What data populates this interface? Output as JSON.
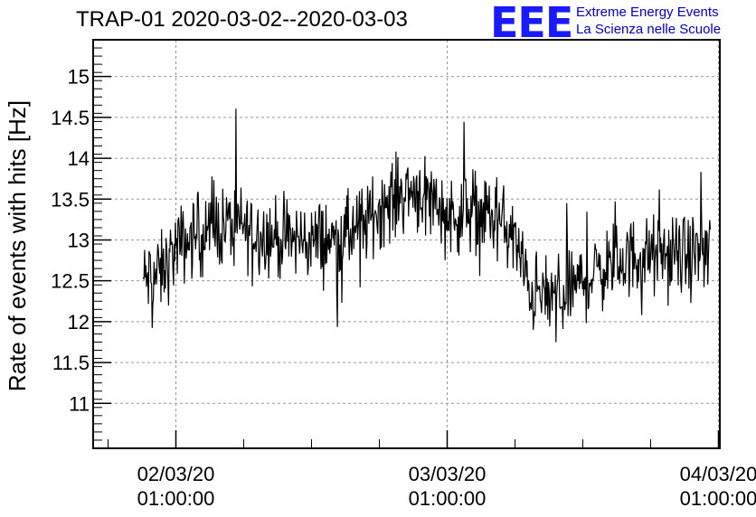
{
  "header": {
    "title": "TRAP-01 2020-03-02--2020-03-03"
  },
  "logo": {
    "letters": "EEE",
    "line1": "Extreme Energy Events",
    "line2": "La Scienza nelle Scuole",
    "color": "#1a1aff"
  },
  "chart_data": {
    "type": "line",
    "title": "TRAP-01 2020-03-02--2020-03-03",
    "xlabel": "",
    "ylabel": "Rate of events with hits [Hz]",
    "ylim": [
      10.45,
      15.45
    ],
    "yticks": [
      11,
      11.5,
      12,
      12.5,
      13,
      13.5,
      14,
      14.5,
      15
    ],
    "xticks": [
      {
        "pos": 1.0,
        "line1": "02/03/20",
        "line2": "01:00:00"
      },
      {
        "pos": 2.0,
        "line1": "03/03/20",
        "line2": "01:00:00"
      },
      {
        "pos": 3.0,
        "line1": "04/03/20",
        "line2": "01:00:00"
      }
    ],
    "xlim": [
      0.695,
      3.005
    ],
    "x_unit": "days",
    "grid": true,
    "line_color": "#000000",
    "series_envelope": {
      "x": [
        0.88,
        0.95,
        1.0,
        1.05,
        1.1,
        1.2,
        1.3,
        1.4,
        1.5,
        1.6,
        1.7,
        1.75,
        1.8,
        1.85,
        1.9,
        1.95,
        2.0,
        2.05,
        2.1,
        2.2,
        2.25,
        2.3,
        2.35,
        2.4,
        2.5,
        2.6,
        2.7,
        2.8,
        2.9,
        2.97
      ],
      "y": [
        12.5,
        12.6,
        12.9,
        13.0,
        13.1,
        13.2,
        13.1,
        13.0,
        13.0,
        13.0,
        13.2,
        13.4,
        13.5,
        13.6,
        13.6,
        13.5,
        13.3,
        13.3,
        13.4,
        13.2,
        13.0,
        12.4,
        12.3,
        12.3,
        12.5,
        12.7,
        12.8,
        12.8,
        12.8,
        12.9
      ],
      "spread": 0.45
    }
  }
}
